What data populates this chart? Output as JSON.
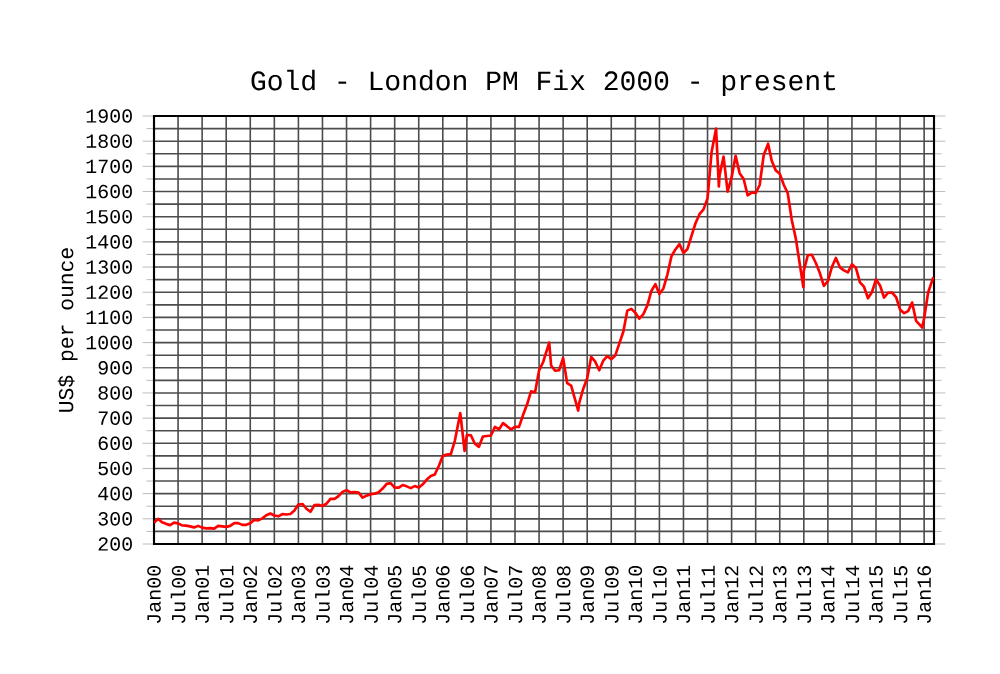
{
  "chart_data": {
    "type": "line",
    "title": "Gold - London PM Fix 2000 - present",
    "ylabel": "US$ per ounce",
    "color": "#ff0000",
    "grid": true,
    "marker": "none",
    "line_style": "solid",
    "xlim": [
      "2000-01",
      "2016-03-15"
    ],
    "ylim": [
      200,
      1900
    ],
    "yticks": [
      200,
      300,
      400,
      500,
      600,
      700,
      800,
      900,
      1000,
      1100,
      1200,
      1300,
      1400,
      1500,
      1600,
      1700,
      1800,
      1900
    ],
    "xticks": [
      {
        "value": "2000-01",
        "label": "Jan00"
      },
      {
        "value": "2000-07",
        "label": "Jul00"
      },
      {
        "value": "2001-01",
        "label": "Jan01"
      },
      {
        "value": "2001-07",
        "label": "Jul01"
      },
      {
        "value": "2002-01",
        "label": "Jan02"
      },
      {
        "value": "2002-07",
        "label": "Jul02"
      },
      {
        "value": "2003-01",
        "label": "Jan03"
      },
      {
        "value": "2003-07",
        "label": "Jul03"
      },
      {
        "value": "2004-01",
        "label": "Jan04"
      },
      {
        "value": "2004-07",
        "label": "Jul04"
      },
      {
        "value": "2005-01",
        "label": "Jan05"
      },
      {
        "value": "2005-07",
        "label": "Jul05"
      },
      {
        "value": "2006-01",
        "label": "Jan06"
      },
      {
        "value": "2006-07",
        "label": "Jul06"
      },
      {
        "value": "2007-01",
        "label": "Jan07"
      },
      {
        "value": "2007-07",
        "label": "Jul07"
      },
      {
        "value": "2008-01",
        "label": "Jan08"
      },
      {
        "value": "2008-07",
        "label": "Jul08"
      },
      {
        "value": "2009-01",
        "label": "Jan09"
      },
      {
        "value": "2009-07",
        "label": "Jul09"
      },
      {
        "value": "2010-01",
        "label": "Jan10"
      },
      {
        "value": "2010-07",
        "label": "Jul10"
      },
      {
        "value": "2011-01",
        "label": "Jan11"
      },
      {
        "value": "2011-07",
        "label": "Jul11"
      },
      {
        "value": "2012-01",
        "label": "Jan12"
      },
      {
        "value": "2012-07",
        "label": "Jul12"
      },
      {
        "value": "2013-01",
        "label": "Jan13"
      },
      {
        "value": "2013-07",
        "label": "Jul13"
      },
      {
        "value": "2014-01",
        "label": "Jan14"
      },
      {
        "value": "2014-07",
        "label": "Jul14"
      },
      {
        "value": "2015-01",
        "label": "Jan15"
      },
      {
        "value": "2015-07",
        "label": "Jul15"
      },
      {
        "value": "2016-01",
        "label": "Jan16"
      }
    ],
    "x": [
      "2000-01",
      "2000-02",
      "2000-03",
      "2000-04",
      "2000-05",
      "2000-06",
      "2000-07",
      "2000-08",
      "2000-09",
      "2000-10",
      "2000-11",
      "2000-12",
      "2001-01",
      "2001-02",
      "2001-03",
      "2001-04",
      "2001-05",
      "2001-06",
      "2001-07",
      "2001-08",
      "2001-09",
      "2001-10",
      "2001-11",
      "2001-12",
      "2002-01",
      "2002-02",
      "2002-03",
      "2002-04",
      "2002-05",
      "2002-06",
      "2002-07",
      "2002-08",
      "2002-09",
      "2002-10",
      "2002-11",
      "2002-12",
      "2003-01",
      "2003-02",
      "2003-03",
      "2003-04",
      "2003-05",
      "2003-06",
      "2003-07",
      "2003-08",
      "2003-09",
      "2003-10",
      "2003-11",
      "2003-12",
      "2004-01",
      "2004-02",
      "2004-03",
      "2004-04",
      "2004-05",
      "2004-06",
      "2004-07",
      "2004-08",
      "2004-09",
      "2004-10",
      "2004-11",
      "2004-12",
      "2005-01",
      "2005-02",
      "2005-03",
      "2005-04",
      "2005-05",
      "2005-06",
      "2005-07",
      "2005-08",
      "2005-09",
      "2005-10",
      "2005-11",
      "2005-12",
      "2006-01",
      "2006-02",
      "2006-03",
      "2006-04",
      "2006-05-12",
      "2006-06-14",
      "2006-07",
      "2006-08",
      "2006-09",
      "2006-10",
      "2006-11",
      "2006-12",
      "2007-01",
      "2007-02",
      "2007-03",
      "2007-04",
      "2007-05",
      "2007-06",
      "2007-07",
      "2007-08",
      "2007-09",
      "2007-10",
      "2007-11",
      "2007-12",
      "2008-01",
      "2008-02",
      "2008-03-17",
      "2008-04",
      "2008-05",
      "2008-06",
      "2008-07",
      "2008-08",
      "2008-09",
      "2008-10-24",
      "2008-11",
      "2008-12",
      "2009-01",
      "2009-02",
      "2009-03",
      "2009-04",
      "2009-05",
      "2009-06",
      "2009-07",
      "2009-08",
      "2009-09",
      "2009-10",
      "2009-11",
      "2009-12",
      "2010-01",
      "2010-02",
      "2010-03",
      "2010-04",
      "2010-05",
      "2010-06",
      "2010-07",
      "2010-08",
      "2010-09",
      "2010-10",
      "2010-11",
      "2010-12",
      "2011-01",
      "2011-02",
      "2011-03",
      "2011-04",
      "2011-05",
      "2011-06",
      "2011-07",
      "2011-08",
      "2011-09-05",
      "2011-09-26",
      "2011-10",
      "2011-11",
      "2011-12",
      "2012-01",
      "2012-02",
      "2012-03",
      "2012-04",
      "2012-05",
      "2012-06",
      "2012-07",
      "2012-08",
      "2012-09",
      "2012-10-04",
      "2012-11",
      "2012-12",
      "2013-01",
      "2013-02",
      "2013-03",
      "2013-04",
      "2013-05",
      "2013-06-28",
      "2013-07",
      "2013-08",
      "2013-09",
      "2013-10",
      "2013-11",
      "2013-12",
      "2014-01",
      "2014-02",
      "2014-03",
      "2014-04",
      "2014-05",
      "2014-06",
      "2014-07",
      "2014-08",
      "2014-09",
      "2014-10",
      "2014-11",
      "2014-12",
      "2015-01",
      "2015-02",
      "2015-03",
      "2015-04",
      "2015-05",
      "2015-06",
      "2015-07",
      "2015-08",
      "2015-09",
      "2015-10",
      "2015-11",
      "2015-12-17",
      "2016-01",
      "2016-02",
      "2016-03-10"
    ],
    "values": [
      284,
      300,
      286,
      280,
      275,
      285,
      282,
      274,
      273,
      270,
      266,
      272,
      265,
      262,
      263,
      261,
      272,
      270,
      268,
      272,
      283,
      283,
      276,
      276,
      282,
      296,
      294,
      302,
      314,
      321,
      313,
      310,
      319,
      317,
      319,
      333,
      357,
      359,
      340,
      328,
      355,
      356,
      351,
      360,
      379,
      379,
      390,
      407,
      414,
      405,
      406,
      404,
      384,
      392,
      398,
      400,
      406,
      420,
      439,
      442,
      424,
      424,
      434,
      429,
      422,
      430,
      424,
      437,
      456,
      470,
      476,
      510,
      550,
      555,
      557,
      610,
      720,
      570,
      633,
      632,
      598,
      586,
      627,
      629,
      631,
      665,
      655,
      680,
      668,
      655,
      665,
      665,
      712,
      754,
      806,
      803,
      889,
      922,
      1000,
      909,
      888,
      890,
      939,
      839,
      829,
      730,
      760,
      816,
      858,
      943,
      924,
      890,
      928,
      946,
      934,
      949,
      996,
      1043,
      1127,
      1134,
      1118,
      1095,
      1113,
      1148,
      1205,
      1232,
      1193,
      1215,
      1271,
      1343,
      1370,
      1391,
      1356,
      1372,
      1424,
      1474,
      1510,
      1529,
      1573,
      1756,
      1850,
      1620,
      1665,
      1739,
      1600,
      1656,
      1742,
      1673,
      1650,
      1585,
      1596,
      1594,
      1626,
      1744,
      1790,
      1722,
      1684,
      1671,
      1627,
      1593,
      1487,
      1414,
      1220,
      1286,
      1347,
      1349,
      1316,
      1276,
      1225,
      1244,
      1300,
      1336,
      1299,
      1287,
      1279,
      1311,
      1296,
      1239,
      1222,
      1176,
      1201,
      1251,
      1227,
      1179,
      1198,
      1199,
      1181,
      1131,
      1117,
      1125,
      1159,
      1086,
      1060,
      1097,
      1199,
      1260
    ]
  }
}
